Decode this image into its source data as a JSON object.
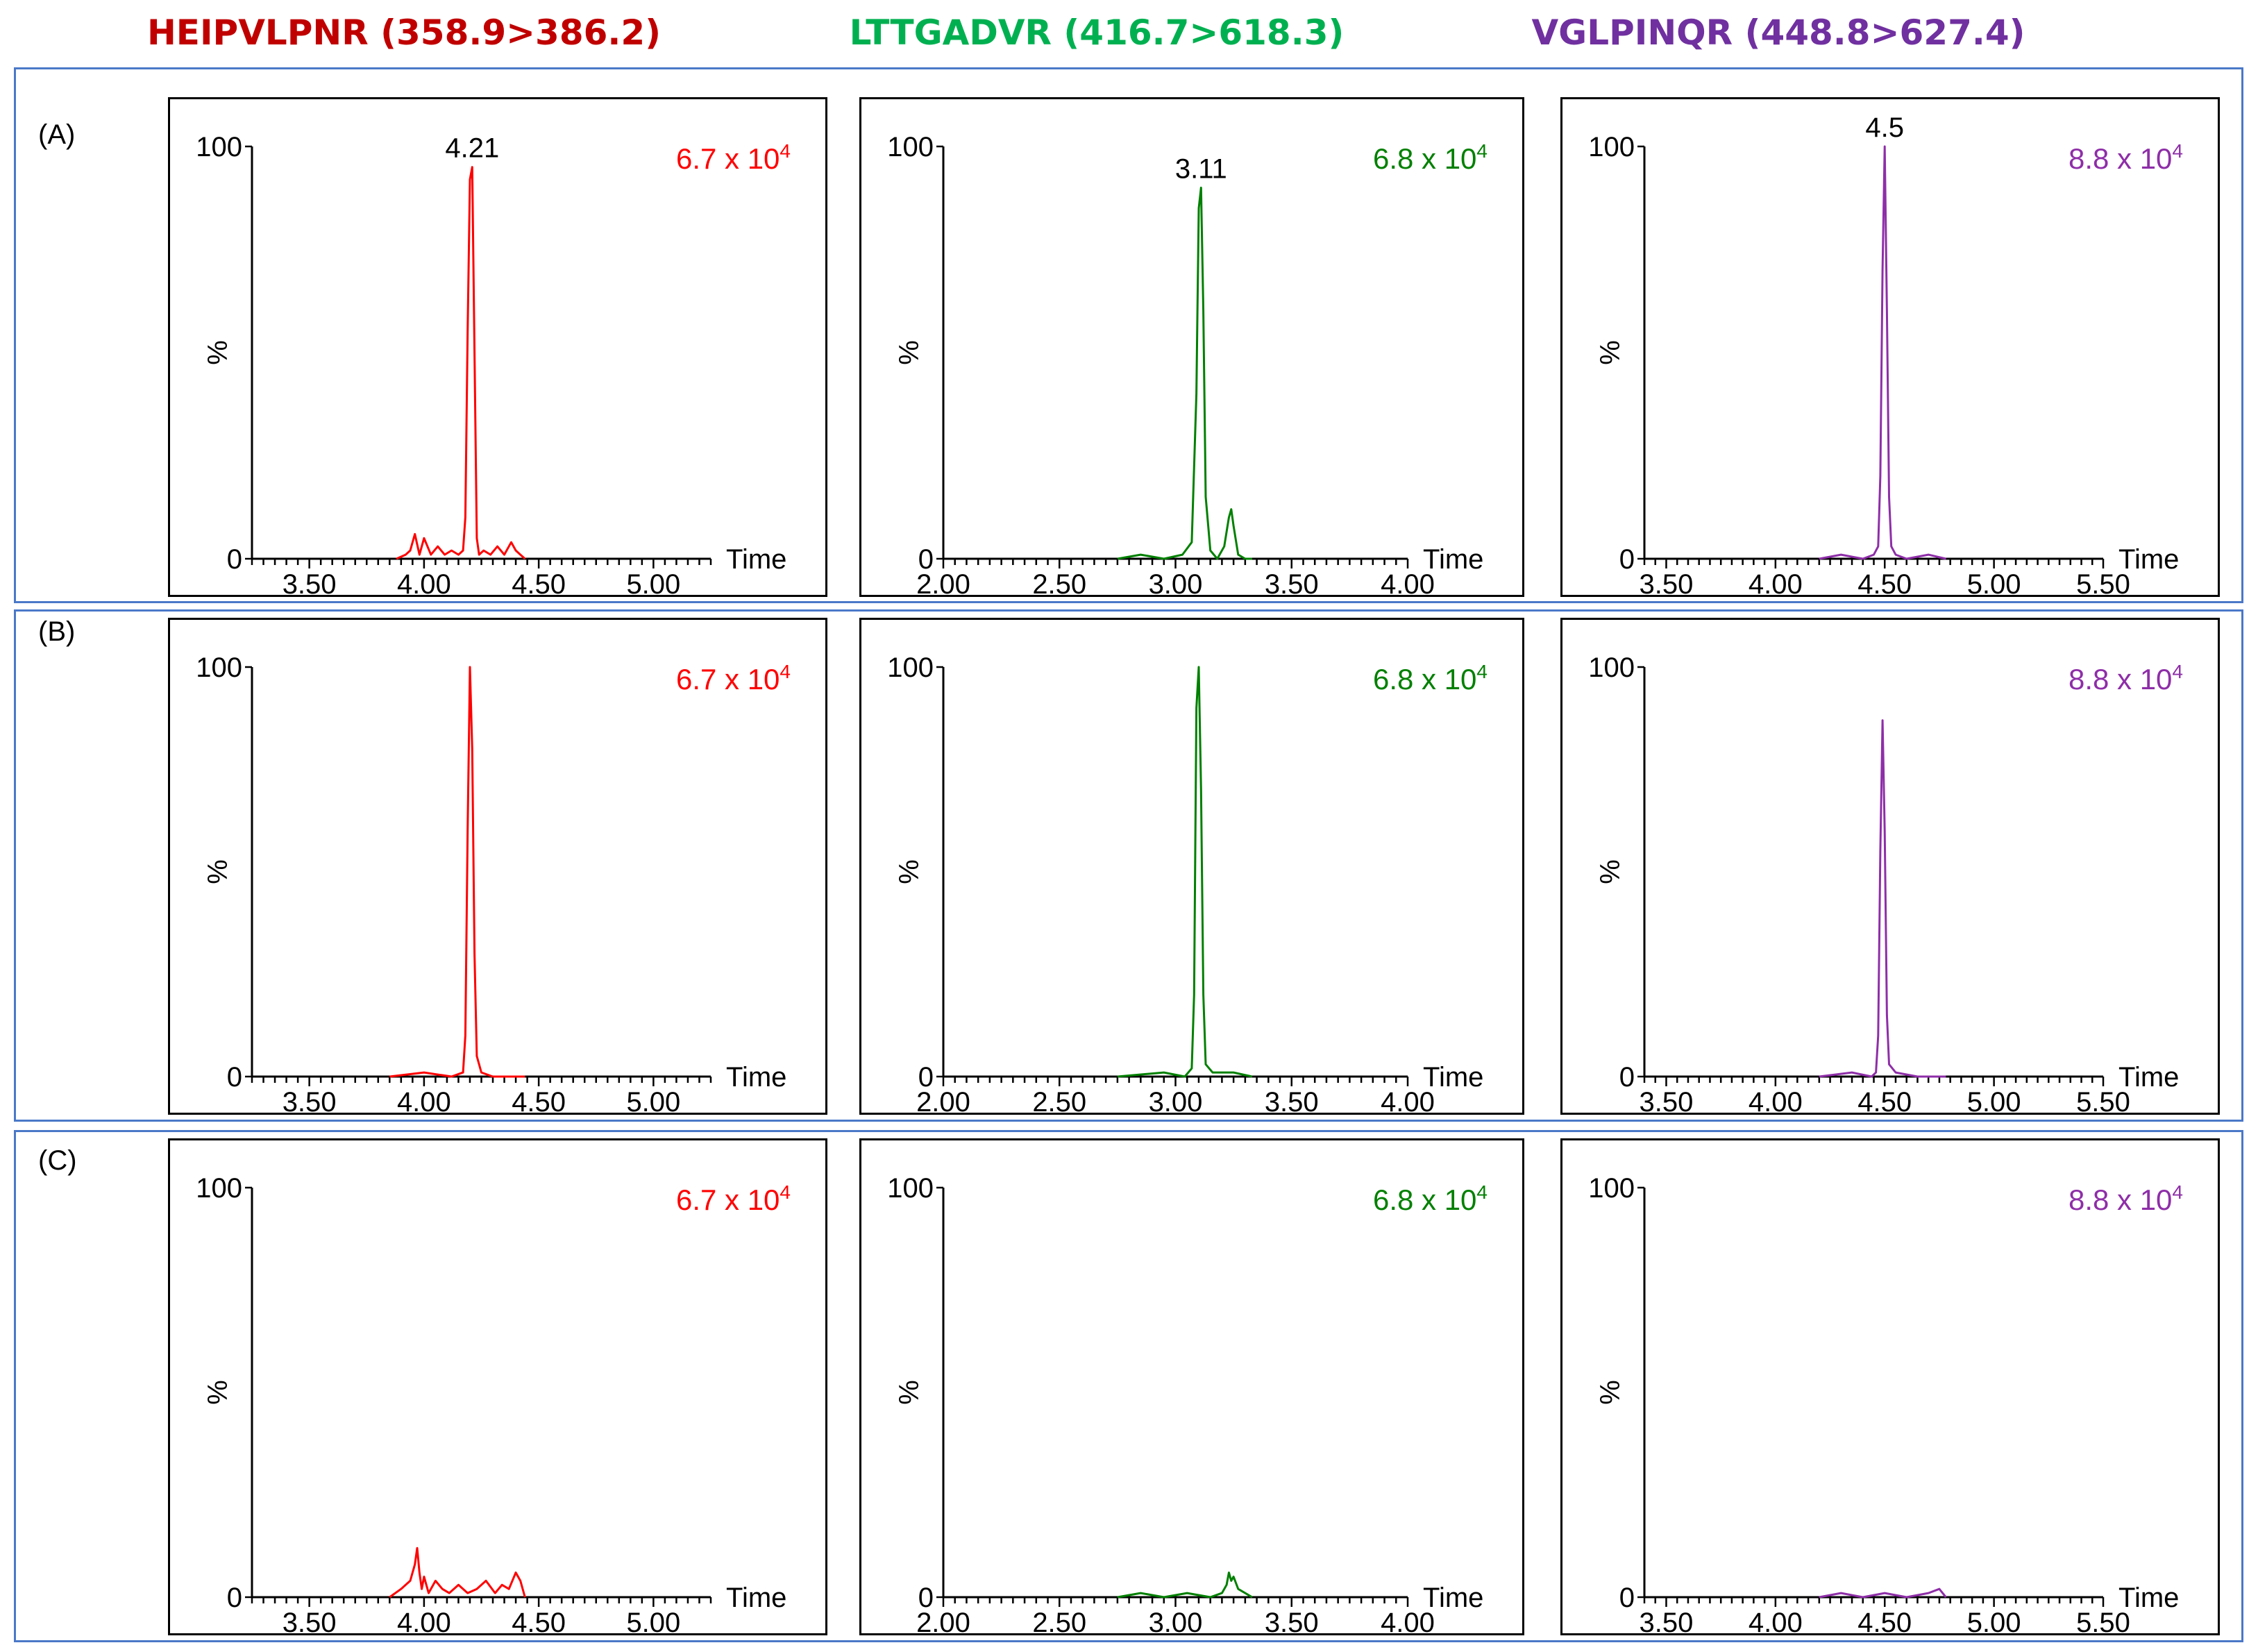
{
  "columns": [
    {
      "title": "HEIPVLPNR (358.9>386.2)",
      "color": "#c00000"
    },
    {
      "title": "LTTGADVR (416.7>618.3)",
      "color": "#00b050"
    },
    {
      "title": "VGLPINQR (448.8>627.4)",
      "color": "#7030a0"
    }
  ],
  "rows": [
    {
      "label": "(A)"
    },
    {
      "label": "(B)"
    },
    {
      "label": "(C)"
    }
  ],
  "chart_data": [
    {
      "type": "line",
      "row": "(A)",
      "xlabel": "Time",
      "ylabel": "%",
      "ylim": [
        0,
        100
      ],
      "xlim": [
        3.25,
        5.25
      ],
      "xticks": [
        "3.50",
        "4.00",
        "4.50",
        "5.00"
      ],
      "yticks": [
        "0",
        "100"
      ],
      "magnitude": "6.7 x 10",
      "magnitude_exp": "4",
      "peak_label": "4.21",
      "series_color": "#ff0000",
      "series": [
        {
          "name": "HEIPVLPNR",
          "x": [
            3.88,
            3.92,
            3.94,
            3.96,
            3.98,
            4.0,
            4.03,
            4.06,
            4.09,
            4.12,
            4.15,
            4.17,
            4.18,
            4.19,
            4.2,
            4.21,
            4.22,
            4.23,
            4.24,
            4.26,
            4.29,
            4.32,
            4.35,
            4.38,
            4.4,
            4.42,
            4.44
          ],
          "y": [
            0,
            1,
            2,
            6,
            1,
            5,
            1,
            3,
            1,
            2,
            1,
            2,
            10,
            55,
            92,
            95,
            50,
            5,
            1,
            2,
            1,
            3,
            1,
            4,
            2,
            1,
            0
          ]
        }
      ]
    },
    {
      "type": "line",
      "row": "(A)",
      "xlabel": "Time",
      "ylabel": "%",
      "ylim": [
        0,
        100
      ],
      "xlim": [
        2.0,
        4.0
      ],
      "xticks": [
        "2.00",
        "2.50",
        "3.00",
        "3.50",
        "4.00"
      ],
      "yticks": [
        "0",
        "100"
      ],
      "magnitude": "6.8 x 10",
      "magnitude_exp": "4",
      "peak_label": "3.11",
      "series_color": "#008000",
      "series": [
        {
          "name": "LTTGADVR",
          "x": [
            2.75,
            2.85,
            2.95,
            3.03,
            3.07,
            3.09,
            3.1,
            3.11,
            3.12,
            3.13,
            3.15,
            3.18,
            3.21,
            3.23,
            3.24,
            3.25,
            3.27,
            3.3,
            3.33
          ],
          "y": [
            0,
            1,
            0,
            1,
            4,
            40,
            85,
            90,
            60,
            15,
            2,
            0,
            3,
            10,
            12,
            8,
            1,
            0,
            0
          ]
        }
      ]
    },
    {
      "type": "line",
      "row": "(A)",
      "xlabel": "Time",
      "ylabel": "%",
      "ylim": [
        0,
        100
      ],
      "xlim": [
        3.4,
        5.5
      ],
      "xticks": [
        "3.50",
        "4.00",
        "4.50",
        "5.00",
        "5.50"
      ],
      "yticks": [
        "0",
        "100"
      ],
      "magnitude": "8.8 x 10",
      "magnitude_exp": "4",
      "peak_label": "4.5",
      "series_color": "#8e2ea8",
      "series": [
        {
          "name": "VGLPINQR",
          "x": [
            4.2,
            4.3,
            4.4,
            4.45,
            4.47,
            4.48,
            4.49,
            4.5,
            4.51,
            4.52,
            4.53,
            4.55,
            4.6,
            4.7,
            4.78
          ],
          "y": [
            0,
            1,
            0,
            1,
            3,
            20,
            70,
            100,
            60,
            15,
            3,
            1,
            0,
            1,
            0
          ]
        }
      ]
    },
    {
      "type": "line",
      "row": "(B)",
      "xlabel": "Time",
      "ylabel": "%",
      "ylim": [
        0,
        100
      ],
      "xlim": [
        3.25,
        5.25
      ],
      "xticks": [
        "3.50",
        "4.00",
        "4.50",
        "5.00"
      ],
      "yticks": [
        "0",
        "100"
      ],
      "magnitude": "6.7 x 10",
      "magnitude_exp": "4",
      "peak_label": "",
      "series_color": "#ff0000",
      "series": [
        {
          "name": "HEIPVLPNR",
          "x": [
            3.85,
            4.0,
            4.12,
            4.17,
            4.18,
            4.19,
            4.2,
            4.21,
            4.22,
            4.23,
            4.25,
            4.3,
            4.44
          ],
          "y": [
            0,
            1,
            0,
            1,
            10,
            60,
            100,
            80,
            30,
            5,
            1,
            0,
            0
          ]
        }
      ]
    },
    {
      "type": "line",
      "row": "(B)",
      "xlabel": "Time",
      "ylabel": "%",
      "ylim": [
        0,
        100
      ],
      "xlim": [
        2.0,
        4.0
      ],
      "xticks": [
        "2.00",
        "2.50",
        "3.00",
        "3.50",
        "4.00"
      ],
      "yticks": [
        "0",
        "100"
      ],
      "magnitude": "6.8 x 10",
      "magnitude_exp": "4",
      "peak_label": "",
      "series_color": "#008000",
      "series": [
        {
          "name": "LTTGADVR",
          "x": [
            2.75,
            2.95,
            3.04,
            3.07,
            3.08,
            3.09,
            3.1,
            3.11,
            3.12,
            3.13,
            3.16,
            3.25,
            3.33
          ],
          "y": [
            0,
            1,
            0,
            2,
            20,
            90,
            100,
            70,
            20,
            3,
            1,
            1,
            0
          ]
        }
      ]
    },
    {
      "type": "line",
      "row": "(B)",
      "xlabel": "Time",
      "ylabel": "%",
      "ylim": [
        0,
        100
      ],
      "xlim": [
        3.4,
        5.5
      ],
      "xticks": [
        "3.50",
        "4.00",
        "4.50",
        "5.00",
        "5.50"
      ],
      "yticks": [
        "0",
        "100"
      ],
      "magnitude": "8.8 x 10",
      "magnitude_exp": "4",
      "peak_label": "",
      "series_color": "#8e2ea8",
      "series": [
        {
          "name": "VGLPINQR",
          "x": [
            4.2,
            4.35,
            4.44,
            4.46,
            4.47,
            4.48,
            4.49,
            4.5,
            4.51,
            4.52,
            4.55,
            4.65,
            4.78
          ],
          "y": [
            0,
            1,
            0,
            1,
            10,
            55,
            87,
            60,
            15,
            3,
            1,
            0,
            0
          ]
        }
      ]
    },
    {
      "type": "line",
      "row": "(C)",
      "xlabel": "Time",
      "ylabel": "%",
      "ylim": [
        0,
        100
      ],
      "xlim": [
        3.25,
        5.25
      ],
      "xticks": [
        "3.50",
        "4.00",
        "4.50",
        "5.00"
      ],
      "yticks": [
        "0",
        "100"
      ],
      "magnitude": "6.7 x 10",
      "magnitude_exp": "4",
      "peak_label": "",
      "series_color": "#ff0000",
      "series": [
        {
          "name": "HEIPVLPNR",
          "x": [
            3.85,
            3.9,
            3.94,
            3.96,
            3.97,
            3.98,
            3.99,
            4.0,
            4.02,
            4.05,
            4.08,
            4.11,
            4.15,
            4.19,
            4.23,
            4.27,
            4.31,
            4.34,
            4.37,
            4.4,
            4.42,
            4.44
          ],
          "y": [
            0,
            2,
            4,
            8,
            12,
            6,
            2,
            5,
            1,
            4,
            2,
            1,
            3,
            1,
            2,
            4,
            1,
            3,
            2,
            6,
            4,
            0
          ]
        }
      ]
    },
    {
      "type": "line",
      "row": "(C)",
      "xlabel": "Time",
      "ylabel": "%",
      "ylim": [
        0,
        100
      ],
      "xlim": [
        2.0,
        4.0
      ],
      "xticks": [
        "2.00",
        "2.50",
        "3.00",
        "3.50",
        "4.00"
      ],
      "yticks": [
        "0",
        "100"
      ],
      "magnitude": "6.8 x 10",
      "magnitude_exp": "4",
      "peak_label": "",
      "series_color": "#008000",
      "series": [
        {
          "name": "LTTGADVR",
          "x": [
            2.75,
            2.85,
            2.95,
            3.05,
            3.15,
            3.2,
            3.22,
            3.23,
            3.24,
            3.25,
            3.27,
            3.3,
            3.33
          ],
          "y": [
            0,
            1,
            0,
            1,
            0,
            1,
            3,
            6,
            4,
            5,
            2,
            1,
            0
          ]
        }
      ]
    },
    {
      "type": "line",
      "row": "(C)",
      "xlabel": "Time",
      "ylabel": "%",
      "ylim": [
        0,
        100
      ],
      "xlim": [
        3.4,
        5.5
      ],
      "xticks": [
        "3.50",
        "4.00",
        "4.50",
        "5.00",
        "5.50"
      ],
      "yticks": [
        "0",
        "100"
      ],
      "magnitude": "8.8 x 10",
      "magnitude_exp": "4",
      "peak_label": "",
      "series_color": "#8e2ea8",
      "series": [
        {
          "name": "VGLPINQR",
          "x": [
            4.2,
            4.3,
            4.4,
            4.5,
            4.6,
            4.7,
            4.75,
            4.78
          ],
          "y": [
            0,
            1,
            0,
            1,
            0,
            1,
            2,
            0
          ]
        }
      ]
    }
  ]
}
